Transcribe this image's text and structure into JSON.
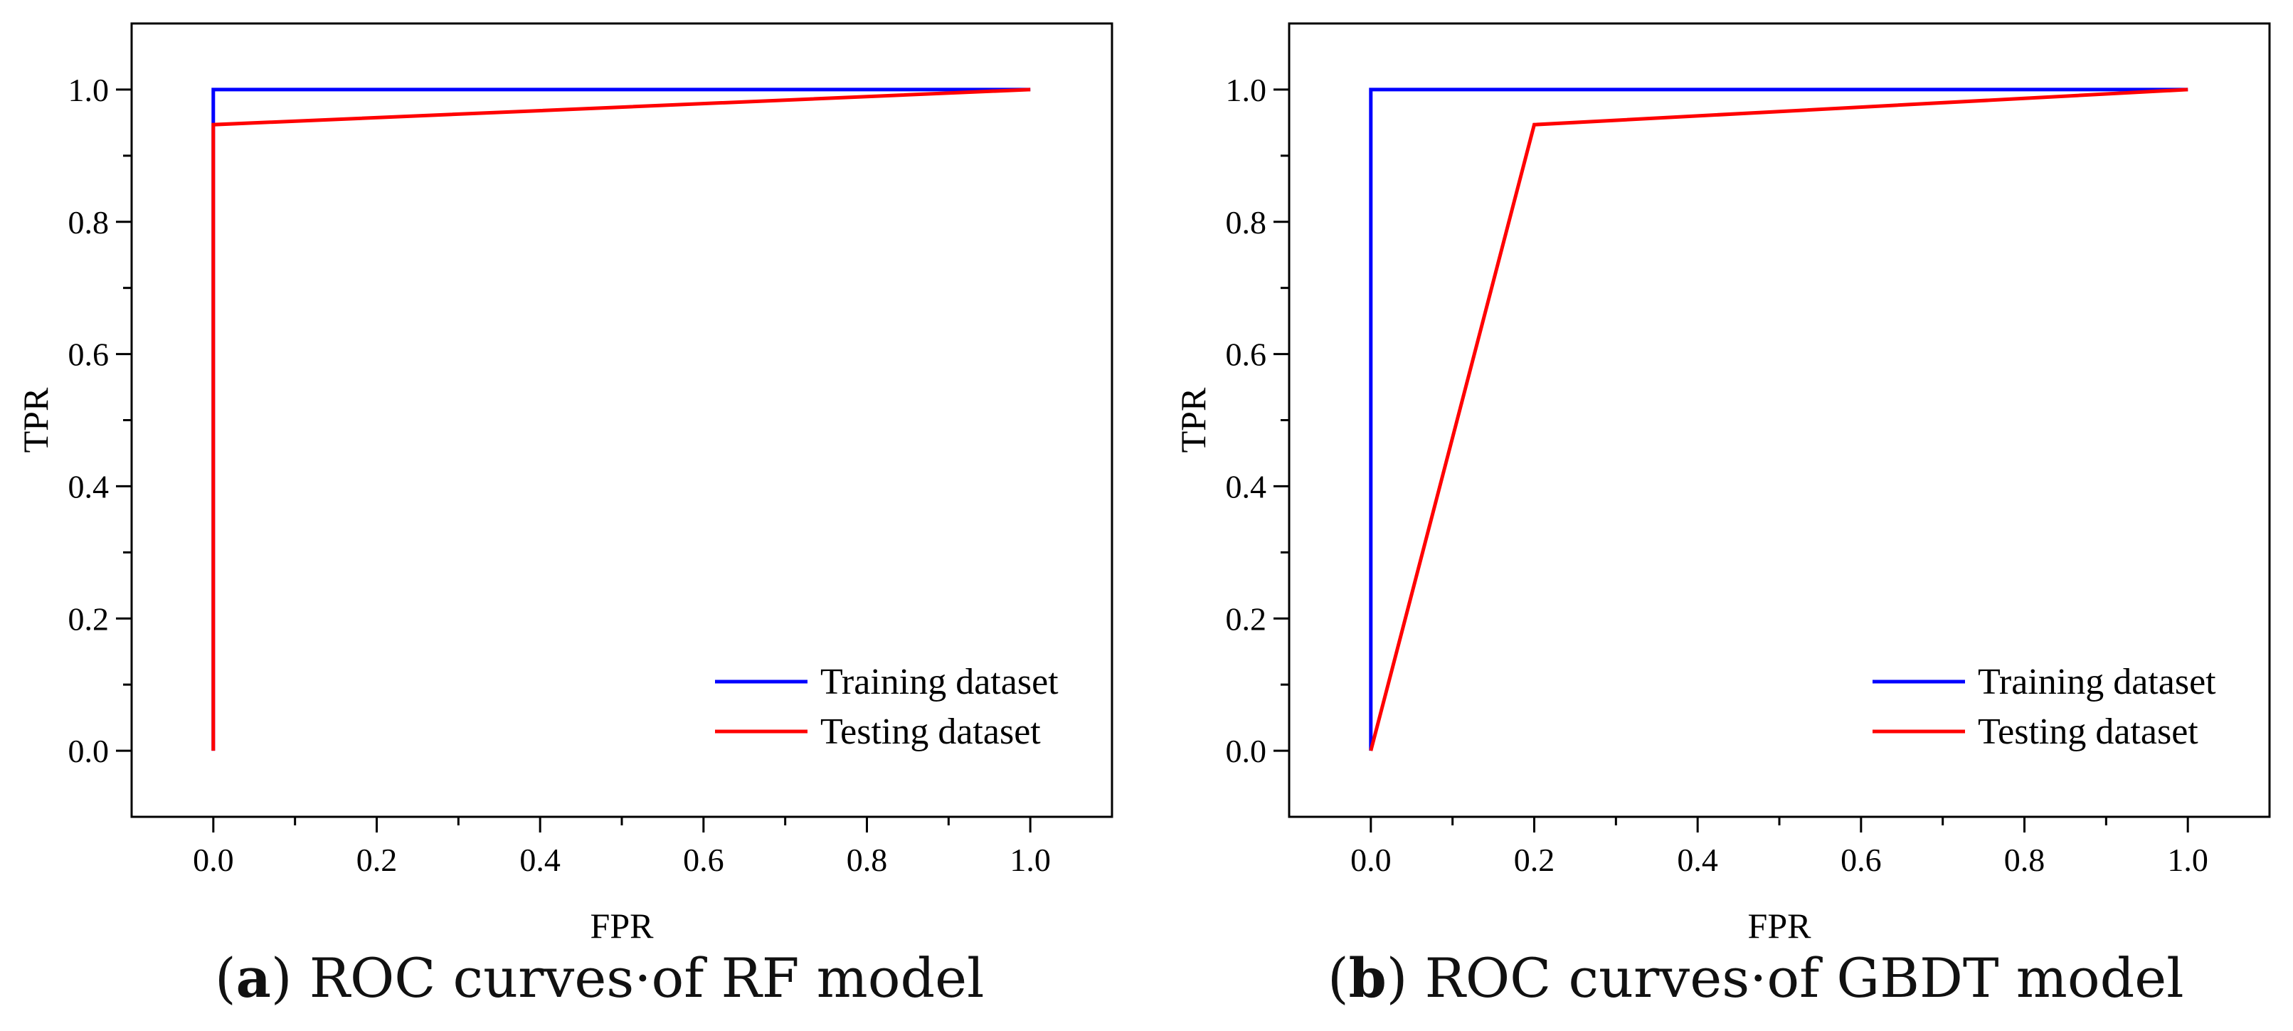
{
  "chart_data": [
    {
      "type": "line",
      "panel_label": "a",
      "caption": "ROC curves·of RF model",
      "xlabel": "FPR",
      "ylabel": "TPR",
      "xlim": [
        -0.1,
        1.1
      ],
      "ylim": [
        -0.1,
        1.1
      ],
      "xticks": [
        "0.0",
        "0.2",
        "0.4",
        "0.6",
        "0.8",
        "1.0"
      ],
      "yticks": [
        "0.0",
        "0.2",
        "0.4",
        "0.6",
        "0.8",
        "1.0"
      ],
      "legend_position": "bottom-right",
      "grid": false,
      "series": [
        {
          "name": "Training dataset",
          "color": "#0000ff",
          "points": [
            [
              0.0,
              0.0
            ],
            [
              0.0,
              1.0
            ],
            [
              1.0,
              1.0
            ]
          ]
        },
        {
          "name": "Testing dataset",
          "color": "#ff0000",
          "points": [
            [
              0.0,
              0.0
            ],
            [
              0.0,
              0.947
            ],
            [
              1.0,
              1.0
            ]
          ]
        }
      ]
    },
    {
      "type": "line",
      "panel_label": "b",
      "caption": "ROC curves·of GBDT model",
      "xlabel": "FPR",
      "ylabel": "TPR",
      "xlim": [
        -0.1,
        1.1
      ],
      "ylim": [
        -0.1,
        1.1
      ],
      "xticks": [
        "0.0",
        "0.2",
        "0.4",
        "0.6",
        "0.8",
        "1.0"
      ],
      "yticks": [
        "0.0",
        "0.2",
        "0.4",
        "0.6",
        "0.8",
        "1.0"
      ],
      "legend_position": "bottom-right",
      "grid": false,
      "series": [
        {
          "name": "Training dataset",
          "color": "#0000ff",
          "points": [
            [
              0.0,
              0.0
            ],
            [
              0.0,
              1.0
            ],
            [
              1.0,
              1.0
            ]
          ]
        },
        {
          "name": "Testing dataset",
          "color": "#ff0000",
          "points": [
            [
              0.0,
              0.0
            ],
            [
              0.2,
              0.947
            ],
            [
              1.0,
              1.0
            ]
          ]
        }
      ]
    }
  ]
}
